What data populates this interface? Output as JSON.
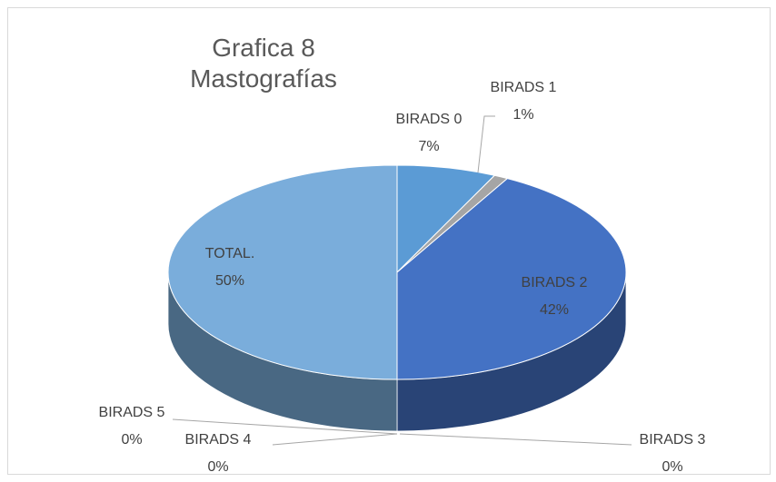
{
  "chart_data": {
    "type": "pie",
    "title": "Grafica 8 Mastografías",
    "categories": [
      "BIRADS 0",
      "BIRADS 1",
      "BIRADS 2",
      "BIRADS 3",
      "BIRADS 4",
      "BIRADS 5",
      "TOTAL."
    ],
    "values": [
      7,
      1,
      42,
      0,
      0,
      0,
      50
    ],
    "value_labels": [
      "7%",
      "1%",
      "42%",
      "0%",
      "0%",
      "0%",
      "50%"
    ],
    "colors": [
      "#5b9bd5",
      "#a5a5a5",
      "#4472c4",
      "#264478",
      "#9e480e",
      "#636363",
      "#7aaddb"
    ]
  }
}
